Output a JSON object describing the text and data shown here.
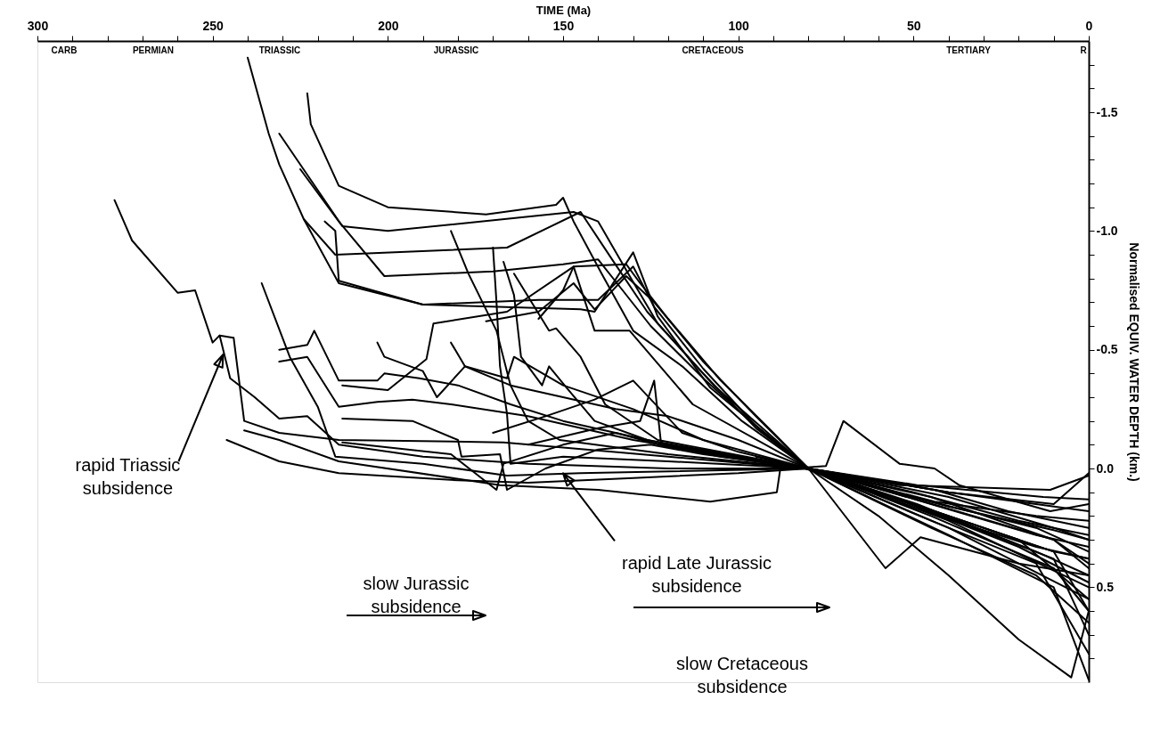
{
  "chart_data": {
    "type": "line",
    "xlabel": "TIME (Ma)",
    "ylabel": "Normalised EQUIV. WATER DEPTH (km.)",
    "xlim": [
      300,
      0
    ],
    "xticks": [
      300,
      {
        "value": 290,
        "label": null
      },
      {
        "value": 280,
        "label": null
      },
      {
        "value": 270,
        "label": null
      },
      {
        "value": 260,
        "label": null
      },
      250,
      {
        "value": 240,
        "label": null
      },
      {
        "value": 230,
        "label": null
      },
      {
        "value": 220,
        "label": null
      },
      {
        "value": 210,
        "label": null
      },
      200,
      {
        "value": 190,
        "label": null
      },
      {
        "value": 180,
        "label": null
      },
      {
        "value": 170,
        "label": null
      },
      {
        "value": 160,
        "label": null
      },
      150,
      {
        "value": 140,
        "label": null
      },
      {
        "value": 130,
        "label": null
      },
      {
        "value": 120,
        "label": null
      },
      {
        "value": 110,
        "label": null
      },
      100,
      {
        "value": 90,
        "label": null
      },
      {
        "value": 80,
        "label": null
      },
      {
        "value": 70,
        "label": null
      },
      {
        "value": 60,
        "label": null
      },
      50,
      {
        "value": 40,
        "label": null
      },
      {
        "value": 30,
        "label": null
      },
      {
        "value": 20,
        "label": null
      },
      {
        "value": 10,
        "label": null
      },
      0
    ],
    "ylim": [
      0.9,
      -1.8
    ],
    "yticks": [
      {
        "value": -1.7,
        "label": null
      },
      {
        "value": -1.6,
        "label": null
      },
      -1.5,
      {
        "value": -1.4,
        "label": null
      },
      {
        "value": -1.3,
        "label": null
      },
      {
        "value": -1.2,
        "label": null
      },
      {
        "value": -1.1,
        "label": null
      },
      {
        "value": -1.0,
        "label": "-1.0"
      },
      {
        "value": -0.9,
        "label": null
      },
      {
        "value": -0.8,
        "label": null
      },
      {
        "value": -0.7,
        "label": null
      },
      {
        "value": -0.6,
        "label": null
      },
      -0.5,
      {
        "value": -0.4,
        "label": null
      },
      {
        "value": -0.3,
        "label": null
      },
      {
        "value": -0.2,
        "label": null
      },
      {
        "value": -0.1,
        "label": null
      },
      {
        "value": 0,
        "label": "0.0"
      },
      {
        "value": 0.1,
        "label": null
      },
      {
        "value": 0.2,
        "label": null
      },
      {
        "value": 0.3,
        "label": null
      },
      {
        "value": 0.4,
        "label": null
      },
      0.5,
      {
        "value": 0.6,
        "label": null
      },
      {
        "value": 0.7,
        "label": null
      },
      {
        "value": 0.8,
        "label": null
      }
    ],
    "grid": false,
    "legend": false,
    "marker": "none",
    "line_style": "solid",
    "annotations": [
      "CARB",
      "PERMIAN",
      "TRIASSIC",
      "JURASSIC",
      "CRETACEOUS",
      "TERTIARY",
      "R",
      {
        "text": "rapid Triassic subsidence",
        "x": 247,
        "y": -0.48
      },
      {
        "text": "rapid Late Jurassic subsidence",
        "x": 150,
        "y": 0.02
      },
      "slow Jurassic subsidence",
      "slow Cretaceous subsidence"
    ],
    "series": [
      {
        "color": "#000000",
        "x": [
          278,
          273,
          260,
          255,
          250,
          248,
          244,
          241,
          231,
          214,
          167,
          120,
          81,
          58,
          20,
          0
        ],
        "values": [
          -1.13,
          -0.96,
          -0.74,
          -0.75,
          -0.53,
          -0.56,
          -0.55,
          -0.2,
          -0.15,
          -0.12,
          -0.11,
          -0.05,
          0,
          0.11,
          0.33,
          0.48
        ]
      },
      {
        "color": "#000000",
        "x": [
          248,
          245,
          238,
          231,
          223,
          214,
          190,
          160,
          120,
          81,
          45,
          10,
          0
        ],
        "values": [
          -0.56,
          -0.38,
          -0.3,
          -0.21,
          -0.22,
          -0.1,
          -0.05,
          -0.02,
          0,
          0,
          0.12,
          0.3,
          0.42
        ]
      },
      {
        "color": "#000000",
        "x": [
          240,
          234,
          231,
          224,
          214,
          190,
          145,
          141,
          130,
          123,
          108,
          90,
          80,
          44,
          23,
          0
        ],
        "values": [
          -1.73,
          -1.41,
          -1.28,
          -1.05,
          -0.78,
          -0.69,
          -0.67,
          -0.66,
          -0.91,
          -0.64,
          -0.34,
          -0.12,
          0,
          0.09,
          0.18,
          0.25
        ]
      },
      {
        "color": "#000000",
        "x": [
          223,
          222,
          214,
          200,
          172,
          152,
          150,
          147,
          139,
          130,
          116,
          99,
          80,
          54,
          11,
          0
        ],
        "values": [
          -1.58,
          -1.45,
          -1.19,
          -1.1,
          -1.07,
          -1.11,
          -1.14,
          -1.04,
          -0.82,
          -0.58,
          -0.43,
          -0.2,
          0,
          0.07,
          0.09,
          0.03
        ]
      },
      {
        "color": "#000000",
        "x": [
          231,
          213,
          200,
          147,
          140,
          131,
          123,
          107,
          80,
          49,
          13,
          0
        ],
        "values": [
          -1.41,
          -1.02,
          -1.0,
          -1.08,
          -1.04,
          -0.81,
          -0.61,
          -0.35,
          0,
          0.07,
          0.12,
          0.13
        ]
      },
      {
        "color": "#000000",
        "x": [
          225,
          214,
          201,
          170,
          150,
          140,
          133,
          125,
          110,
          95,
          80,
          45,
          15,
          0
        ],
        "values": [
          -1.26,
          -1.04,
          -0.81,
          -0.83,
          -0.86,
          -0.88,
          -0.75,
          -0.6,
          -0.38,
          -0.18,
          0,
          0.14,
          0.25,
          0.35
        ]
      },
      {
        "color": "#000000",
        "x": [
          224,
          215,
          166,
          145,
          136,
          126,
          110,
          95,
          80,
          44,
          15,
          0
        ],
        "values": [
          -1.05,
          -0.9,
          -0.93,
          -1.08,
          -0.88,
          -0.66,
          -0.4,
          -0.17,
          0,
          0.14,
          0.2,
          0.22
        ]
      },
      {
        "color": "#000000",
        "x": [
          218,
          215,
          214,
          190,
          157,
          140,
          130,
          124,
          110,
          95,
          80,
          40,
          10,
          0
        ],
        "values": [
          -1.04,
          -1.0,
          -0.79,
          -0.69,
          -0.71,
          -0.71,
          -0.85,
          -0.68,
          -0.42,
          -0.18,
          0,
          0.17,
          0.3,
          0.4
        ]
      },
      {
        "color": "#000000",
        "x": [
          213,
          200,
          189,
          187,
          166,
          147,
          141,
          131,
          113,
          80,
          49,
          15,
          0
        ],
        "values": [
          -0.35,
          -0.33,
          -0.46,
          -0.61,
          -0.66,
          -0.85,
          -0.58,
          -0.58,
          -0.27,
          0,
          0.15,
          0.35,
          0.45
        ]
      },
      {
        "color": "#000000",
        "x": [
          203,
          201,
          190,
          186,
          178,
          166,
          164,
          150,
          130,
          110,
          80,
          45,
          15,
          0
        ],
        "values": [
          -0.53,
          -0.47,
          -0.41,
          -0.3,
          -0.43,
          -0.38,
          -0.47,
          -0.35,
          -0.25,
          -0.12,
          0,
          0.15,
          0.28,
          0.33
        ]
      },
      {
        "color": "#000000",
        "x": [
          182,
          178,
          165,
          150,
          135,
          120,
          100,
          80,
          40,
          10,
          0
        ],
        "values": [
          -0.53,
          -0.43,
          -0.35,
          -0.3,
          -0.25,
          -0.22,
          -0.12,
          0,
          0.2,
          0.35,
          0.6
        ]
      },
      {
        "color": "#000000",
        "x": [
          182,
          177,
          169,
          165,
          160,
          151,
          120,
          80,
          40,
          0
        ],
        "values": [
          -1.0,
          -0.82,
          -0.58,
          -0.35,
          -0.2,
          -0.12,
          -0.06,
          0,
          0.25,
          0.55
        ]
      },
      {
        "color": "#000000",
        "x": [
          170,
          169,
          168,
          166,
          165,
          150,
          120,
          80,
          40,
          0
        ],
        "values": [
          -0.93,
          -0.7,
          -0.43,
          -0.23,
          -0.02,
          -0.05,
          -0.03,
          0,
          0.22,
          0.5
        ]
      },
      {
        "color": "#000000",
        "x": [
          167,
          164,
          162,
          156,
          154,
          149,
          141,
          126,
          80,
          45,
          10,
          0
        ],
        "values": [
          -0.87,
          -0.73,
          -0.47,
          -0.35,
          -0.43,
          -0.34,
          -0.2,
          -0.12,
          0,
          0.18,
          0.38,
          0.7
        ]
      },
      {
        "color": "#000000",
        "x": [
          164,
          154,
          152,
          145,
          138,
          123,
          80,
          40,
          10,
          0
        ],
        "values": [
          -0.82,
          -0.58,
          -0.59,
          -0.47,
          -0.27,
          -0.12,
          0,
          0.28,
          0.5,
          0.89
        ]
      },
      {
        "color": "#000000",
        "x": [
          157,
          150,
          147,
          132,
          128,
          120,
          105,
          90,
          80,
          50,
          20,
          0
        ],
        "values": [
          -0.63,
          -0.75,
          -0.85,
          -0.86,
          -0.78,
          -0.63,
          -0.37,
          -0.15,
          0,
          0.1,
          0.22,
          0.28
        ]
      },
      {
        "color": "#000000",
        "x": [
          172,
          157,
          147,
          141,
          132,
          124,
          110,
          95,
          80,
          45,
          15,
          0
        ],
        "values": [
          -0.62,
          -0.66,
          -0.78,
          -0.67,
          -0.81,
          -0.7,
          -0.45,
          -0.22,
          0,
          0.19,
          0.33,
          0.38
        ]
      },
      {
        "color": "#000000",
        "x": [
          231,
          223,
          221,
          214,
          203,
          201,
          191,
          180,
          165,
          150,
          120,
          80,
          40,
          10,
          0
        ],
        "values": [
          -0.5,
          -0.52,
          -0.58,
          -0.37,
          -0.37,
          -0.4,
          -0.38,
          -0.35,
          -0.27,
          -0.2,
          -0.1,
          0,
          0.2,
          0.35,
          0.38
        ]
      },
      {
        "color": "#000000",
        "x": [
          231,
          223,
          214,
          203,
          193,
          182,
          160,
          130,
          80,
          40,
          10,
          0
        ],
        "values": [
          -0.45,
          -0.47,
          -0.26,
          -0.28,
          -0.29,
          -0.27,
          -0.22,
          -0.12,
          0,
          0.16,
          0.26,
          0.3
        ]
      },
      {
        "color": "#000000",
        "x": [
          236,
          228,
          220,
          215,
          190,
          166,
          145,
          80,
          40,
          0
        ],
        "values": [
          -0.78,
          -0.47,
          -0.26,
          -0.05,
          -0.02,
          0.03,
          0.02,
          0,
          0.1,
          0.18
        ]
      },
      {
        "color": "#000000",
        "x": [
          241,
          231,
          214,
          168,
          140,
          108,
          89,
          88,
          80,
          40,
          10,
          0
        ],
        "values": [
          -0.16,
          -0.12,
          -0.03,
          0.07,
          0.09,
          0.14,
          0.1,
          0,
          0,
          0.12,
          0.25,
          0.3
        ]
      },
      {
        "color": "#000000",
        "x": [
          246,
          231,
          214,
          180,
          160,
          130,
          100,
          80,
          40,
          10,
          0
        ],
        "values": [
          -0.12,
          -0.03,
          0.02,
          0.05,
          0.06,
          0.04,
          0.02,
          0,
          0.1,
          0.15,
          0.02
        ]
      },
      {
        "color": "#000000",
        "x": [
          213,
          193,
          180,
          179,
          168,
          166,
          155,
          140,
          125,
          110,
          80,
          45,
          15,
          0
        ],
        "values": [
          -0.21,
          -0.2,
          -0.12,
          -0.05,
          -0.06,
          0.09,
          0.0,
          -0.08,
          -0.1,
          -0.06,
          0,
          0.22,
          0.4,
          0.78
        ]
      },
      {
        "color": "#000000",
        "x": [
          213,
          182,
          169,
          167,
          150,
          135,
          120,
          80,
          45,
          15,
          0
        ],
        "values": [
          -0.11,
          -0.06,
          0.09,
          -0.02,
          -0.1,
          -0.15,
          -0.09,
          0,
          0.25,
          0.45,
          0.65
        ]
      },
      {
        "color": "#000000",
        "x": [
          170,
          155,
          141,
          130,
          116,
          100,
          80,
          50,
          20,
          0
        ],
        "values": [
          -0.15,
          -0.22,
          -0.29,
          -0.37,
          -0.15,
          -0.07,
          0,
          0.15,
          0.3,
          0.55
        ]
      },
      {
        "color": "#000000",
        "x": [
          160,
          140,
          128,
          124,
          122,
          105,
          80,
          45,
          10,
          0
        ],
        "values": [
          -0.1,
          -0.17,
          -0.2,
          -0.37,
          -0.1,
          -0.05,
          0,
          0.2,
          0.42,
          0.6
        ]
      },
      {
        "color": "#000000",
        "x": [
          85,
          75,
          70,
          54,
          44,
          37,
          11,
          0
        ],
        "values": [
          0.0,
          -0.01,
          -0.2,
          -0.02,
          0,
          0.07,
          0.18,
          0.15
        ]
      },
      {
        "color": "#000000",
        "x": [
          95,
          80,
          58,
          48,
          20,
          0
        ],
        "values": [
          -0.05,
          0,
          0.42,
          0.29,
          0.4,
          0.45
        ]
      },
      {
        "color": "#000000",
        "x": [
          80,
          60,
          40,
          20,
          5,
          0
        ],
        "values": [
          0,
          0.2,
          0.45,
          0.72,
          0.88,
          0.6
        ]
      }
    ]
  }
}
